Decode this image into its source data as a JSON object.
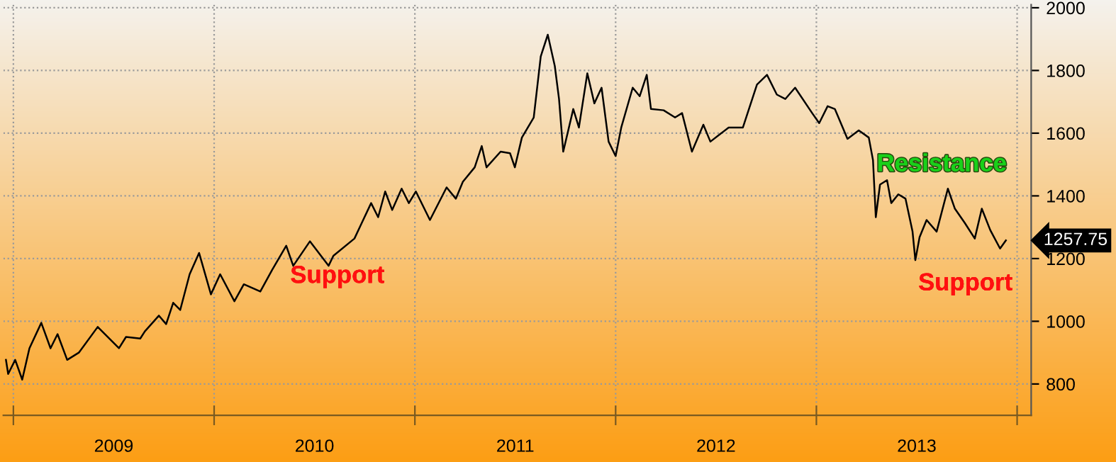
{
  "chart_data": {
    "type": "line",
    "color": "#000000",
    "x": [
      2008.963,
      2008.974,
      2009.009,
      2009.044,
      2009.08,
      2009.139,
      2009.185,
      2009.22,
      2009.268,
      2009.326,
      2009.42,
      2009.526,
      2009.561,
      2009.632,
      2009.655,
      2009.725,
      2009.761,
      2009.796,
      2009.831,
      2009.878,
      2009.925,
      2009.984,
      2010.03,
      2010.101,
      2010.148,
      2010.23,
      2010.289,
      2010.359,
      2010.394,
      2010.477,
      2010.57,
      2010.594,
      2010.699,
      2010.782,
      2010.817,
      2010.852,
      2010.887,
      2010.934,
      2010.97,
      2011.005,
      2011.075,
      2011.158,
      2011.204,
      2011.239,
      2011.298,
      2011.333,
      2011.357,
      2011.427,
      2011.474,
      2011.498,
      2011.533,
      2011.592,
      2011.627,
      2011.662,
      2011.697,
      2011.718,
      2011.739,
      2011.789,
      2011.817,
      2011.859,
      2011.894,
      2011.93,
      2011.965,
      2012.0,
      2012.028,
      2012.085,
      2012.12,
      2012.155,
      2012.176,
      2012.239,
      2012.296,
      2012.331,
      2012.38,
      2012.437,
      2012.472,
      2012.563,
      2012.634,
      2012.704,
      2012.754,
      2012.803,
      2012.845,
      2012.894,
      2012.979,
      2013.014,
      2013.056,
      2013.092,
      2013.155,
      2013.211,
      2013.261,
      2013.282,
      2013.296,
      2013.317,
      2013.352,
      2013.373,
      2013.408,
      2013.444,
      2013.479,
      2013.493,
      2013.514,
      2013.549,
      2013.599,
      2013.655,
      2013.69,
      2013.739,
      2013.789,
      2013.824,
      2013.866,
      2013.915,
      2013.944
    ],
    "values": [
      877,
      832,
      877,
      814,
      914,
      995,
      914,
      959,
      877,
      900,
      982,
      914,
      950,
      945,
      968,
      1018,
      991,
      1059,
      1036,
      1150,
      1218,
      1086,
      1150,
      1064,
      1118,
      1095,
      1164,
      1241,
      1177,
      1255,
      1177,
      1209,
      1264,
      1377,
      1332,
      1414,
      1355,
      1423,
      1377,
      1414,
      1323,
      1427,
      1391,
      1445,
      1491,
      1559,
      1491,
      1541,
      1536,
      1491,
      1586,
      1650,
      1845,
      1914,
      1814,
      1709,
      1541,
      1677,
      1618,
      1791,
      1695,
      1745,
      1573,
      1527,
      1618,
      1745,
      1718,
      1786,
      1677,
      1673,
      1650,
      1664,
      1541,
      1627,
      1573,
      1618,
      1618,
      1755,
      1786,
      1723,
      1709,
      1745,
      1664,
      1632,
      1686,
      1677,
      1582,
      1609,
      1586,
      1514,
      1332,
      1436,
      1450,
      1377,
      1405,
      1391,
      1286,
      1195,
      1268,
      1323,
      1286,
      1423,
      1359,
      1314,
      1264,
      1359,
      1291,
      1232,
      1257.75
    ],
    "xlim": [
      2008.95,
      2014.07
    ],
    "xticks": [
      {
        "value": 2009,
        "label": null
      },
      {
        "value": 2010,
        "label": null
      },
      {
        "value": 2011,
        "label": null
      },
      {
        "value": 2012,
        "label": null
      },
      {
        "value": 2013,
        "label": null
      },
      {
        "value": 2014,
        "label": null
      },
      {
        "value": 2009.5,
        "label": "2009"
      },
      {
        "value": 2010.5,
        "label": "2010"
      },
      {
        "value": 2011.5,
        "label": "2011"
      },
      {
        "value": 2012.5,
        "label": "2012"
      },
      {
        "value": 2013.5,
        "label": "2013"
      }
    ],
    "ylim": [
      700,
      2010
    ],
    "yticks": [
      800,
      1000,
      1200,
      1400,
      1600,
      1800,
      2000
    ],
    "grid": true,
    "annotations": [
      "Support",
      "Resistance",
      "Support",
      {
        "text": "1257.75",
        "x": 2013.944,
        "y": 1257.75
      }
    ]
  }
}
